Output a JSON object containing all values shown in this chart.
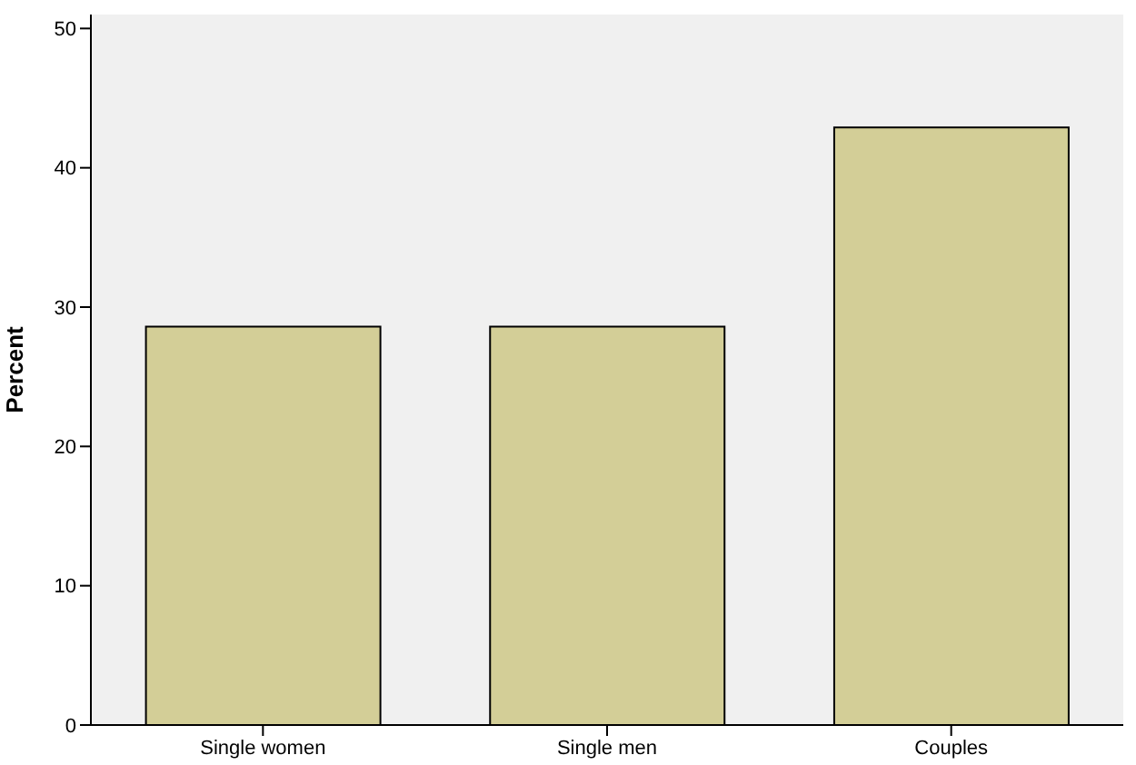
{
  "chart_data": {
    "type": "bar",
    "ylabel": "Percent",
    "categories": [
      "Single women",
      "Single men",
      "Couples"
    ],
    "values": [
      28.6,
      28.6,
      42.9
    ],
    "color": "#d3ce97",
    "ylim": [
      0,
      51
    ],
    "yticks": [
      0,
      10,
      20,
      30,
      40,
      50
    ]
  }
}
